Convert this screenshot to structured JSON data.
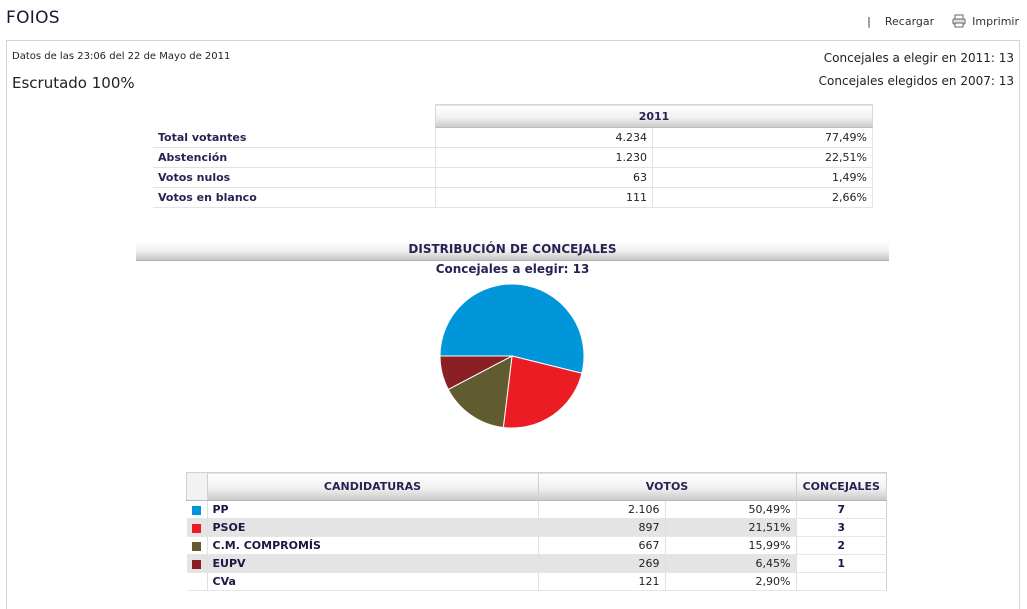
{
  "header": {
    "title": "FOIOS",
    "separator": "|",
    "reload_label": "Recargar",
    "print_label": "Imprimir"
  },
  "info": {
    "datos": "Datos de las 23:06  del 22 de Mayo de 2011",
    "escrutado": "Escrutado 100%",
    "concejales_2011": "Concejales a elegir en 2011: 13",
    "concejales_2007": "Concejales elegidos en 2007: 13"
  },
  "summary": {
    "year": "2011",
    "rows": [
      {
        "label": "Total votantes",
        "count": "4.234",
        "pct": "77,49%"
      },
      {
        "label": "Abstención",
        "count": "1.230",
        "pct": "22,51%"
      },
      {
        "label": "Votos nulos",
        "count": "63",
        "pct": "1,49%"
      },
      {
        "label": "Votos en blanco",
        "count": "111",
        "pct": "2,66%"
      }
    ]
  },
  "distribution": {
    "title": "DISTRIBUCIÓN DE CONCEJALES",
    "subtitle": "Concejales a elegir: 13"
  },
  "chart_data": {
    "type": "pie",
    "title": "DISTRIBUCIÓN DE CONCEJALES",
    "subtitle": "Concejales a elegir: 13",
    "labels": [
      "PP",
      "PSOE",
      "C.M. COMPROMÍS",
      "EUPV"
    ],
    "values": [
      7,
      3,
      2,
      1
    ],
    "colors": [
      "#0096d9",
      "#ec1c24",
      "#605c2f",
      "#8a1f24"
    ]
  },
  "results": {
    "headers": {
      "candidaturas": "CANDIDATURAS",
      "votos": "VOTOS",
      "concejales": "CONCEJALES"
    },
    "rows": [
      {
        "name": "PP",
        "votes": "2.106",
        "pct": "50,49%",
        "seats": "7",
        "color": "#0096d9"
      },
      {
        "name": "PSOE",
        "votes": "897",
        "pct": "21,51%",
        "seats": "3",
        "color": "#ec1c24"
      },
      {
        "name": "C.M. COMPROMÍS",
        "votes": "667",
        "pct": "15,99%",
        "seats": "2",
        "color": "#605c2f"
      },
      {
        "name": "EUPV",
        "votes": "269",
        "pct": "6,45%",
        "seats": "1",
        "color": "#8a1f24"
      },
      {
        "name": "CVa",
        "votes": "121",
        "pct": "2,90%",
        "seats": "",
        "color": ""
      }
    ]
  }
}
